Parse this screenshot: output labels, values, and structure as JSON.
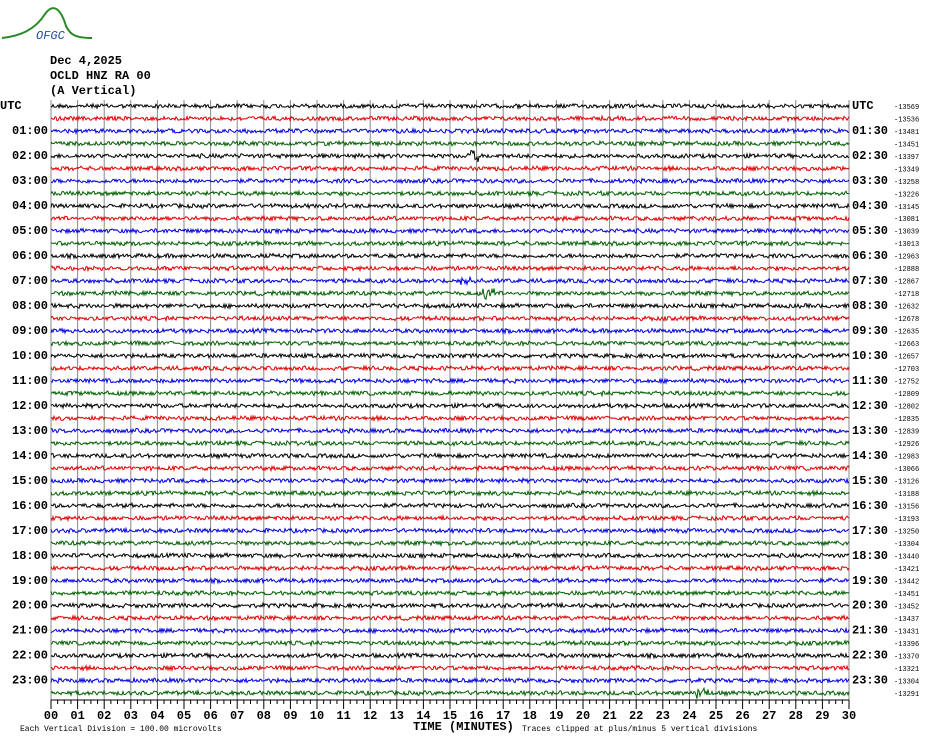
{
  "logo": "OFGC",
  "header": {
    "date": "Dec 4,2025",
    "station": "OCLD HNZ RA 00",
    "component": "(A Vertical)"
  },
  "left_labels": [
    "UTC",
    "01:00",
    "02:00",
    "03:00",
    "04:00",
    "05:00",
    "06:00",
    "07:00",
    "08:00",
    "09:00",
    "10:00",
    "11:00",
    "12:00",
    "13:00",
    "14:00",
    "15:00",
    "16:00",
    "17:00",
    "18:00",
    "19:00",
    "20:00",
    "21:00",
    "22:00",
    "23:00"
  ],
  "right_labels": [
    "UTC",
    "01:30",
    "02:30",
    "03:30",
    "04:30",
    "05:30",
    "06:30",
    "07:30",
    "08:30",
    "09:30",
    "10:30",
    "11:30",
    "12:30",
    "13:30",
    "14:30",
    "15:30",
    "16:30",
    "17:30",
    "18:30",
    "19:30",
    "20:30",
    "21:30",
    "22:30",
    "23:30"
  ],
  "offsets": [
    "-13569",
    "-13536",
    "-13481",
    "-13451",
    "-13397",
    "-13349",
    "-13258",
    "-13226",
    "-13145",
    "-13081",
    "-13039",
    "-13013",
    "-12963",
    "-12888",
    "-12867",
    "-12718",
    "-12632",
    "-12678",
    "-12635",
    "-12663",
    "-12657",
    "-12703",
    "-12752",
    "-12809",
    "-12802",
    "-12835",
    "-12839",
    "-12926",
    "-12983",
    "-13066",
    "-13126",
    "-13188",
    "-13156",
    "-13193",
    "-13250",
    "-13304",
    "-13440",
    "-13421",
    "-13442",
    "-13451",
    "-13452",
    "-13437",
    "-13431",
    "-13396",
    "-13370",
    "-13321",
    "-13304",
    "-13291"
  ],
  "x_ticks": [
    "00",
    "01",
    "02",
    "03",
    "04",
    "05",
    "06",
    "07",
    "08",
    "09",
    "10",
    "11",
    "12",
    "13",
    "14",
    "15",
    "16",
    "17",
    "18",
    "19",
    "20",
    "21",
    "22",
    "23",
    "24",
    "25",
    "26",
    "27",
    "28",
    "29",
    "30"
  ],
  "footer": {
    "scale": "Each Vertical Division =  100.00 microvolts",
    "axis_title": "TIME (MINUTES)",
    "clip": "Traces clipped at plus/minus 5 vertical divisions"
  }
}
